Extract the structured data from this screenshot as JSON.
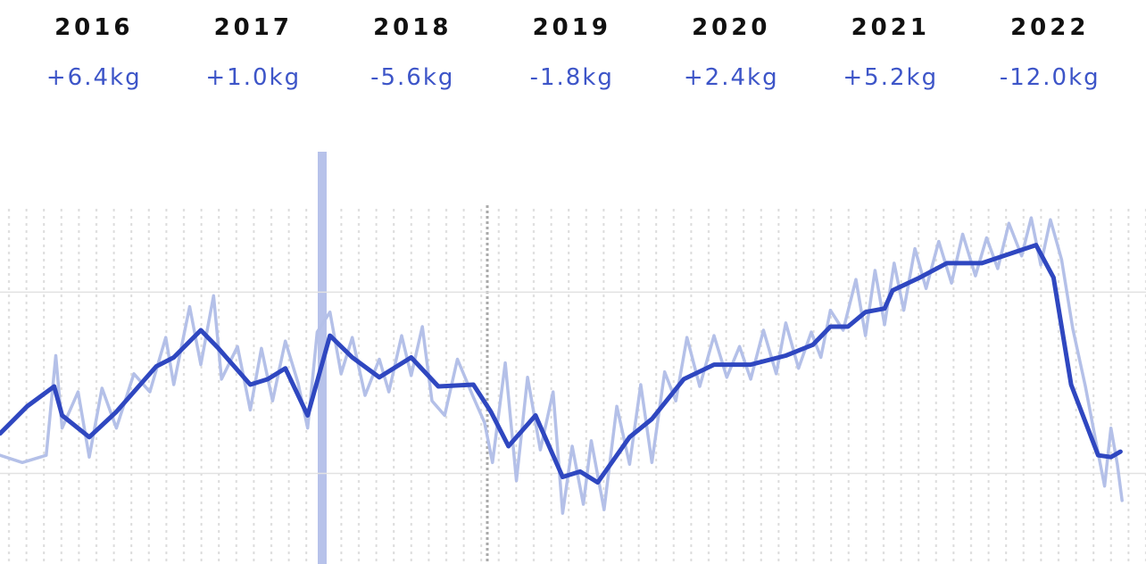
{
  "header": {
    "years": [
      "2016",
      "2017",
      "2018",
      "2019",
      "2020",
      "2021",
      "2022"
    ],
    "changes": [
      "+6.4kg",
      "+1.0kg",
      "-5.6kg",
      "-1.8kg",
      "+2.4kg",
      "+5.2kg",
      "-12.0kg"
    ]
  },
  "chart_data": {
    "type": "line",
    "xlim": [
      2015.91,
      2023.1
    ],
    "ylim": [
      75,
      97.75
    ],
    "ygrid": [
      80,
      90
    ],
    "series": [
      {
        "color": "#b4c0e8",
        "x": [
          2015.91,
          2016.05,
          2016.2,
          2016.26,
          2016.3,
          2016.4,
          2016.47,
          2016.55,
          2016.64,
          2016.75,
          2016.85,
          2016.95,
          2017.0,
          2017.1,
          2017.17,
          2017.25,
          2017.3,
          2017.4,
          2017.48,
          2017.55,
          2017.62,
          2017.7,
          2017.78,
          2017.84,
          2017.9,
          2017.98,
          2018.05,
          2018.12,
          2018.2,
          2018.29,
          2018.35,
          2018.43,
          2018.49,
          2018.56,
          2018.62,
          2018.7,
          2018.78,
          2018.88,
          2018.95,
          2019.0,
          2019.08,
          2019.15,
          2019.22,
          2019.3,
          2019.38,
          2019.44,
          2019.5,
          2019.57,
          2019.62,
          2019.7,
          2019.78,
          2019.86,
          2019.93,
          2020.0,
          2020.08,
          2020.15,
          2020.22,
          2020.3,
          2020.39,
          2020.47,
          2020.55,
          2020.62,
          2020.7,
          2020.78,
          2020.84,
          2020.92,
          2021.0,
          2021.06,
          2021.12,
          2021.2,
          2021.28,
          2021.34,
          2021.4,
          2021.46,
          2021.52,
          2021.58,
          2021.65,
          2021.72,
          2021.8,
          2021.88,
          2021.95,
          2022.03,
          2022.1,
          2022.17,
          2022.24,
          2022.32,
          2022.38,
          2022.44,
          2022.5,
          2022.57,
          2022.64,
          2022.72,
          2022.78,
          2022.84,
          2022.88,
          2022.92,
          2022.95
        ],
        "values": [
          81.0,
          80.6,
          81.0,
          86.5,
          82.5,
          84.5,
          80.9,
          84.7,
          82.5,
          85.5,
          84.5,
          87.5,
          84.9,
          89.2,
          86.0,
          89.8,
          85.2,
          87.0,
          83.5,
          86.9,
          84.0,
          87.3,
          85.0,
          82.5,
          87.8,
          88.9,
          85.5,
          87.5,
          84.3,
          86.3,
          84.5,
          87.6,
          85.4,
          88.1,
          84.0,
          83.2,
          86.3,
          84.2,
          82.8,
          80.6,
          86.1,
          79.6,
          85.3,
          81.3,
          84.5,
          77.8,
          81.5,
          78.3,
          81.8,
          78.0,
          83.7,
          80.5,
          84.9,
          80.6,
          85.6,
          84.0,
          87.5,
          84.8,
          87.6,
          85.3,
          87.0,
          85.2,
          87.9,
          85.5,
          88.3,
          85.8,
          87.8,
          86.4,
          89.0,
          87.9,
          90.7,
          87.6,
          91.2,
          88.2,
          91.6,
          89.0,
          92.4,
          90.2,
          92.8,
          90.5,
          93.2,
          90.9,
          93.0,
          91.3,
          93.8,
          92.0,
          94.1,
          91.5,
          94.0,
          91.8,
          88.0,
          84.8,
          82.0,
          79.3,
          82.5,
          80.5,
          78.5
        ]
      },
      {
        "color": "#2f47c0",
        "x": [
          2015.91,
          2016.08,
          2016.25,
          2016.3,
          2016.47,
          2016.64,
          2016.89,
          2017.0,
          2017.17,
          2017.28,
          2017.48,
          2017.59,
          2017.7,
          2017.84,
          2017.98,
          2018.12,
          2018.29,
          2018.49,
          2018.66,
          2018.88,
          2018.99,
          2019.1,
          2019.27,
          2019.44,
          2019.55,
          2019.66,
          2019.86,
          2020.0,
          2020.2,
          2020.39,
          2020.62,
          2020.84,
          2021.01,
          2021.12,
          2021.23,
          2021.34,
          2021.46,
          2021.51,
          2021.68,
          2021.85,
          2022.07,
          2022.24,
          2022.41,
          2022.52,
          2022.63,
          2022.8,
          2022.88,
          2022.94
        ],
        "values": [
          82.2,
          83.7,
          84.8,
          83.2,
          82.0,
          83.4,
          85.9,
          86.4,
          87.9,
          86.9,
          84.9,
          85.2,
          85.8,
          83.2,
          87.6,
          86.4,
          85.3,
          86.4,
          84.8,
          84.9,
          83.4,
          81.5,
          83.2,
          79.8,
          80.1,
          79.5,
          82.0,
          83.0,
          85.2,
          86.0,
          86.0,
          86.5,
          87.1,
          88.1,
          88.1,
          88.9,
          89.1,
          90.1,
          90.8,
          91.6,
          91.6,
          92.1,
          92.6,
          90.8,
          84.9,
          81.0,
          80.9,
          81.2
        ]
      }
    ]
  }
}
